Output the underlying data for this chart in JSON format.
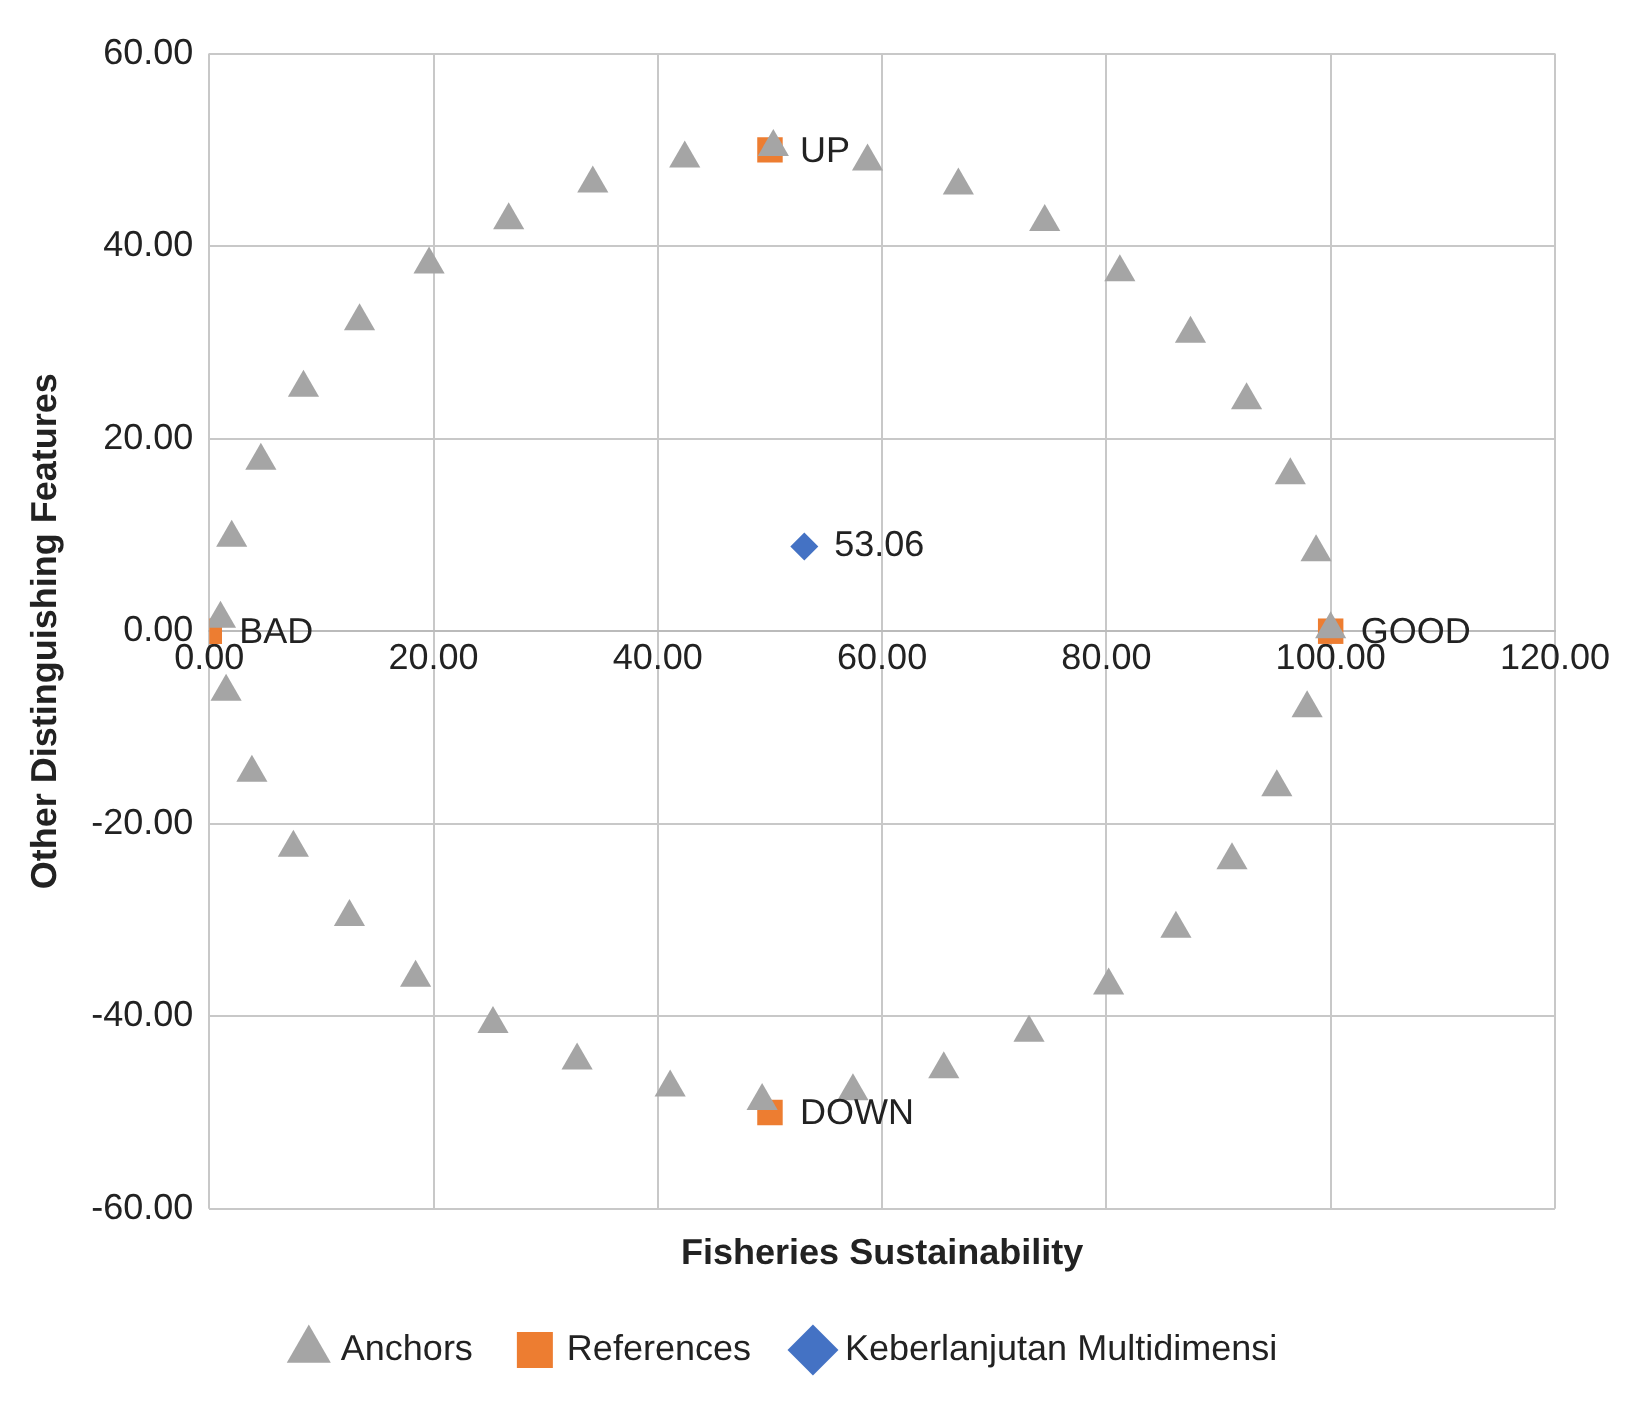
{
  "chart_data": {
    "type": "scatter",
    "xlabel": "Fisheries Sustainability",
    "ylabel": "Other Distinguishing Features",
    "xlim": [
      0,
      120
    ],
    "ylim": [
      -60,
      60
    ],
    "xticks": [
      {
        "value": 0,
        "label": "0.00"
      },
      {
        "value": 20,
        "label": "20.00"
      },
      {
        "value": 40,
        "label": "40.00"
      },
      {
        "value": 60,
        "label": "60.00"
      },
      {
        "value": 80,
        "label": "80.00"
      },
      {
        "value": 100,
        "label": "100.00"
      },
      {
        "value": 120,
        "label": "120.00"
      }
    ],
    "yticks": [
      {
        "value": -60,
        "label": "-60.00"
      },
      {
        "value": -40,
        "label": "-40.00"
      },
      {
        "value": -20,
        "label": "-20.00"
      },
      {
        "value": 0,
        "label": "0.00"
      },
      {
        "value": 20,
        "label": "20.00"
      },
      {
        "value": 40,
        "label": "40.00"
      },
      {
        "value": 60,
        "label": "60.00"
      }
    ],
    "grid": true,
    "legend": "bottom",
    "annotations": [
      {
        "text": "53.06",
        "x": 53.06,
        "y": 8.8
      }
    ],
    "series": [
      {
        "name": "Keberlanjutan Multidimensi",
        "color": "#4472c4",
        "marker": "diamond",
        "x": [
          53.06
        ],
        "values": [
          8.8
        ]
      },
      {
        "name": "References",
        "color": "#ed7d31",
        "marker": "square",
        "x": [
          0,
          100,
          50,
          50
        ],
        "values": [
          0,
          0,
          50,
          -50
        ],
        "value_labels": [
          "BAD",
          "GOOD",
          "UP",
          "DOWN"
        ]
      },
      {
        "name": "Anchors",
        "color": "#a5a5a5",
        "marker": "triangle",
        "x": [
          1,
          2,
          4.6,
          8.4,
          13.4,
          19.6,
          26.7,
          34.2,
          42.4,
          50.3,
          58.7,
          66.8,
          74.5,
          81.2,
          87.5,
          92.5,
          96.4,
          98.7,
          100,
          97.9,
          95.2,
          91.2,
          86.2,
          80.2,
          73.1,
          65.5,
          57.4,
          49.3,
          41.1,
          32.8,
          25.3,
          18.4,
          12.5,
          7.5,
          3.8,
          1.5
        ],
        "values": [
          1.3,
          9.7,
          17.7,
          25.3,
          32.2,
          38.1,
          42.7,
          46.5,
          49.1,
          50.3,
          48.8,
          46.3,
          42.5,
          37.3,
          30.9,
          24,
          16.2,
          8.2,
          0.2,
          -8,
          -16.2,
          -23.8,
          -30.9,
          -36.8,
          -41.7,
          -45.5,
          -47.8,
          -48.8,
          -47.4,
          -44.6,
          -40.8,
          -36,
          -29.7,
          -22.5,
          -14.7,
          -6.3
        ]
      }
    ]
  }
}
